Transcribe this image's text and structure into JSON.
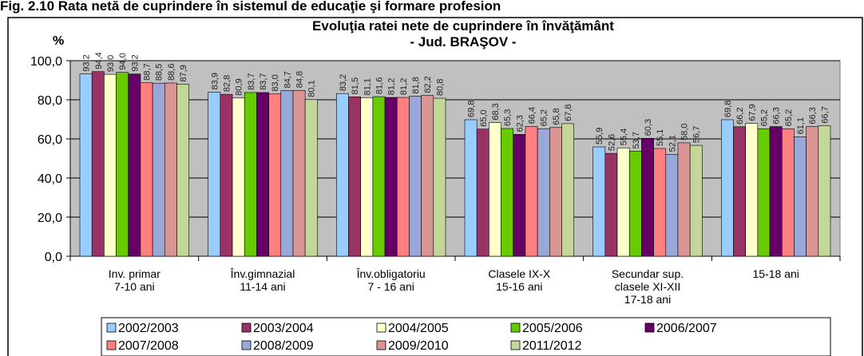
{
  "chart_data": {
    "type": "bar",
    "figure_caption": "Fig. 2.10 Rata netă de cuprindere în sistemul de educaţie şi formare profesion",
    "title": "Evoluţia ratei nete de cuprindere în învăţământ",
    "subtitle": "- Jud. BRAŞOV -",
    "y_label": "%",
    "categories": [
      "Inv. primar\n7-10 ani",
      "Înv.gimnazial\n11-14 ani",
      "Înv.obligatoriu\n7 - 16 ani",
      "Clasele IX-X\n15-16 ani",
      "Secundar sup.\nclasele XI-XII\n17-18 ani",
      "15-18 ani"
    ],
    "ylim": [
      0,
      100
    ],
    "yticks": [
      {
        "value": 0,
        "label": "0,0"
      },
      {
        "value": 20,
        "label": "20,0"
      },
      {
        "value": 40,
        "label": "40,0"
      },
      {
        "value": 60,
        "label": "60,0"
      },
      {
        "value": 80,
        "label": "80,0"
      },
      {
        "value": 100,
        "label": "100,0"
      }
    ],
    "grid": true,
    "legend": "bottom",
    "series": [
      {
        "name": "2002/2003",
        "color": "#99ccff",
        "values": [
          93.2,
          83.9,
          83.2,
          69.8,
          55.9,
          69.8
        ],
        "value_labels": [
          "93,2",
          "83,9",
          "83,2",
          "69,8",
          "55,9",
          "69,8"
        ]
      },
      {
        "name": "2003/2004",
        "color": "#993366",
        "values": [
          94.4,
          82.8,
          81.5,
          65.0,
          52.6,
          66.2
        ],
        "value_labels": [
          "94,4",
          "82,8",
          "81,5",
          "65,0",
          "52,6",
          "66,2"
        ]
      },
      {
        "name": "2004/2005",
        "color": "#ffffcc",
        "values": [
          93.0,
          80.9,
          81.1,
          68.3,
          55.4,
          67.9
        ],
        "value_labels": [
          "93,0",
          "80,9",
          "81,1",
          "68,3",
          "55,4",
          "67,9"
        ]
      },
      {
        "name": "2005/2006",
        "color": "#66cc00",
        "values": [
          94.0,
          83.7,
          81.6,
          65.3,
          53.7,
          65.2
        ],
        "value_labels": [
          "94,0",
          "83,7",
          "81,6",
          "65,3",
          "53,7",
          "65,2"
        ]
      },
      {
        "name": "2006/2007",
        "color": "#660066",
        "values": [
          93.2,
          83.7,
          81.2,
          62.3,
          60.3,
          66.3
        ],
        "value_labels": [
          "93,2",
          "83,7",
          "81,2",
          "62,3",
          "60,3",
          "66,3"
        ]
      },
      {
        "name": "2007/2008",
        "color": "#ff8080",
        "values": [
          88.7,
          83.0,
          81.2,
          66.4,
          55.1,
          65.2
        ],
        "value_labels": [
          "88,7",
          "83,0",
          "81,2",
          "66,4",
          "55,1",
          "65,2"
        ]
      },
      {
        "name": "2008/2009",
        "color": "#99a8d8",
        "values": [
          88.5,
          84.7,
          81.8,
          65.2,
          52.1,
          61.1
        ],
        "value_labels": [
          "88,5",
          "84,7",
          "81,8",
          "65,2",
          "52,1",
          "61,1"
        ]
      },
      {
        "name": "2009/2010",
        "color": "#d99594",
        "values": [
          88.6,
          84.8,
          82.2,
          65.8,
          58.0,
          66.3
        ],
        "value_labels": [
          "88,6",
          "84,8",
          "82,2",
          "65,8",
          "58,0",
          "66,3"
        ]
      },
      {
        "name": "2011/2012",
        "color": "#c4d79b",
        "values": [
          87.9,
          80.1,
          80.8,
          67.8,
          56.7,
          66.7
        ],
        "value_labels": [
          "87,9",
          "80,1",
          "80,8",
          "67,8",
          "56,7",
          "66,7"
        ]
      }
    ]
  }
}
